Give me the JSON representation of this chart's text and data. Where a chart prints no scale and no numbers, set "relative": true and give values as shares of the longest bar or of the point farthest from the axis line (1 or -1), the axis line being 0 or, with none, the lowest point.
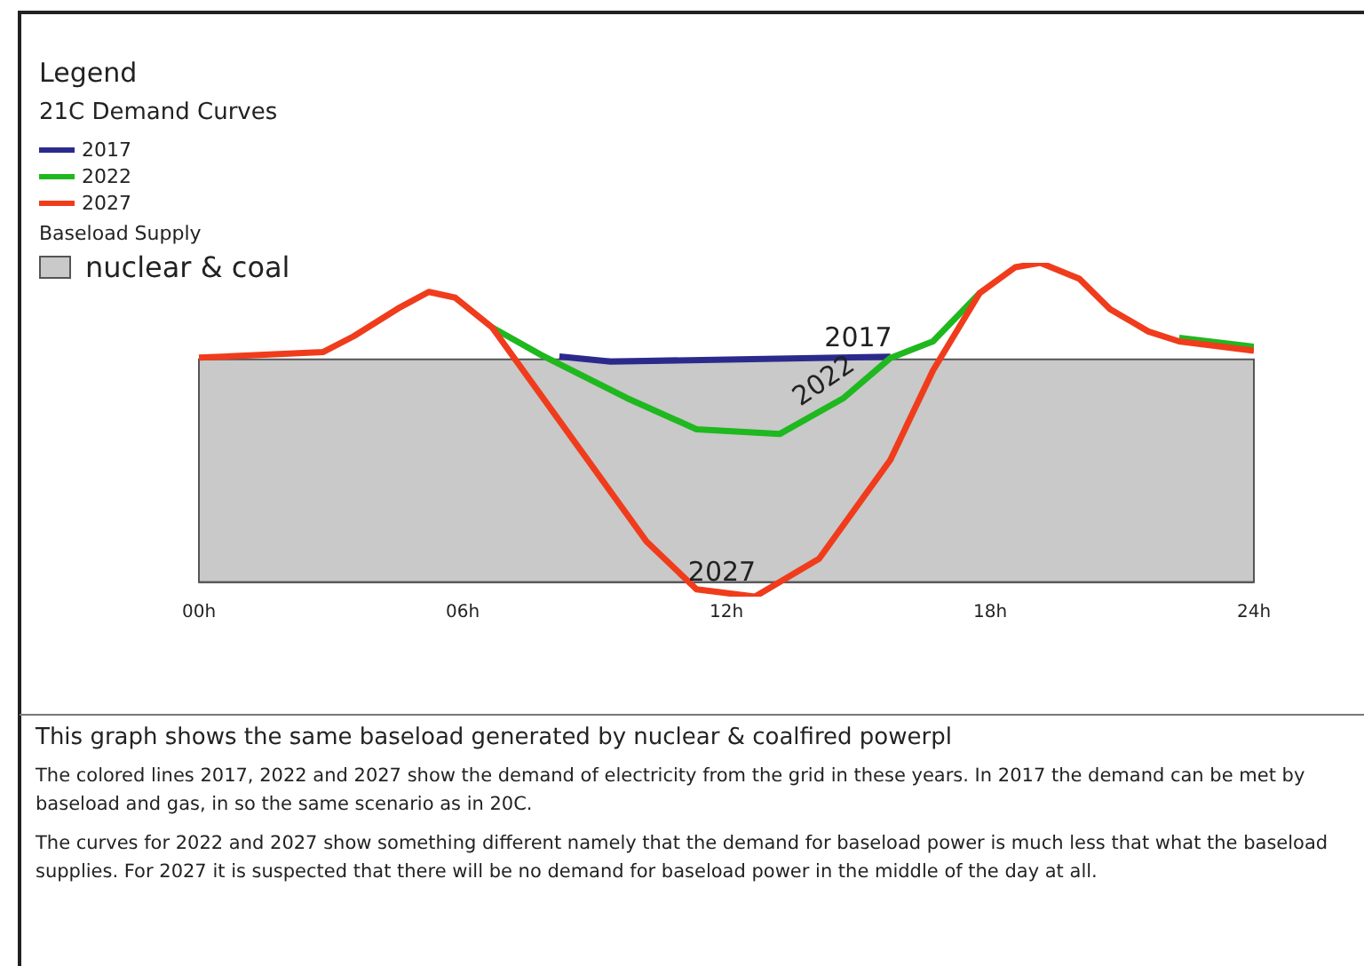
{
  "chart_data": {
    "type": "line",
    "relative": true,
    "legend": "top left",
    "legend_title": "Legend",
    "title": "This graph shows the same baseload generated by nuclear & coalfired powerpl",
    "xlim": [
      0,
      24
    ],
    "xticks": [
      {
        "value": 0,
        "label": "00h"
      },
      {
        "value": 6,
        "label": "06h"
      },
      {
        "value": 12,
        "label": "12h"
      },
      {
        "value": 18,
        "label": "18h"
      },
      {
        "value": 24,
        "label": "24h"
      }
    ],
    "grid": false,
    "series": [
      {
        "name": "2017",
        "color": "#2b2a8c",
        "x": [
          8.2,
          9.37,
          15.73
        ],
        "values": [
          0.707,
          0.691,
          0.706
        ]
      },
      {
        "name": "2022",
        "color": "#1fb81f",
        "x": [
          6.67,
          7.78,
          9.73,
          11.32,
          13.21,
          14.67,
          15.73,
          16.7,
          17.76,
          20.0,
          22.3,
          24
        ],
        "values": [
          0.798,
          0.712,
          0.577,
          0.479,
          0.464,
          0.577,
          0.702,
          0.754,
          0.905,
          null,
          0.765,
          0.737
        ]
      },
      {
        "name": "2027",
        "color": "#f03c1c",
        "x": [
          0,
          2.83,
          3.52,
          4.53,
          5.23,
          5.83,
          6.67,
          10.18,
          11.32,
          12.65,
          14.11,
          15.73,
          16.7,
          17.76,
          18.57,
          19.14,
          20.03,
          20.73,
          21.6,
          22.3,
          24
        ],
        "values": [
          0.703,
          0.721,
          0.77,
          0.857,
          0.909,
          0.891,
          0.798,
          0.128,
          -0.022,
          -0.045,
          0.074,
          0.383,
          0.663,
          0.905,
          0.986,
          1.0,
          0.95,
          0.855,
          0.785,
          0.754,
          0.725
        ]
      }
    ],
    "bands": [
      {
        "axis": "y",
        "from": 0,
        "to": 0.698,
        "label": "nuclear & coal",
        "color": "#c8c9c8"
      }
    ],
    "annotations": [
      "21C Demand Curves",
      "Baseload Supply",
      "The colored lines 2017, 2022 and 2027 show the demand of electricity from the grid in these years. In 2017 the demand can be met by baseload and gas, in so the same scenario as in 20C.",
      "The curves for 2022 and 2027 show something different namely that the demand for baseload power is much less that what the baseload supplies. For 2027 it is suspected that there will be no demand for baseload power in the middle of the day at all.",
      {
        "text": "2017",
        "x": 15.0,
        "y": 0.707
      },
      {
        "text": "2022",
        "x": 14.4,
        "y": 0.582
      },
      {
        "text": "2027",
        "x": 11.9,
        "y": -0.025
      }
    ]
  }
}
